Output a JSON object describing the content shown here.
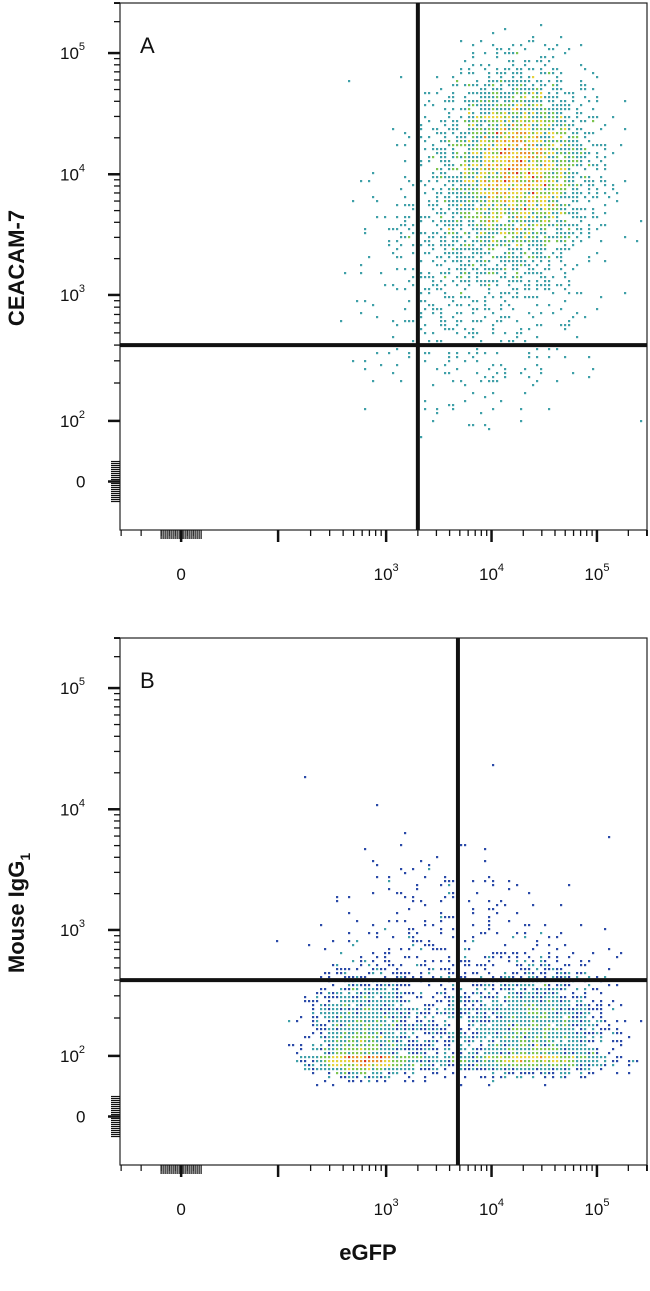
{
  "chart_data": {
    "type": "scatter",
    "x_axis_label": "eGFP",
    "scale": "biexponential (logicle)",
    "x_tick_labels": [
      {
        "base": "0",
        "exp": ""
      },
      {
        "base": "10",
        "exp": "3"
      },
      {
        "base": "10",
        "exp": "4"
      },
      {
        "base": "10",
        "exp": "5"
      }
    ],
    "y_tick_labels": [
      {
        "base": "0",
        "exp": ""
      },
      {
        "base": "10",
        "exp": "2"
      },
      {
        "base": "10",
        "exp": "3"
      },
      {
        "base": "10",
        "exp": "4"
      },
      {
        "base": "10",
        "exp": "5"
      }
    ],
    "density_colors": [
      "#2a4aa8",
      "#3fa0a8",
      "#7cc44e",
      "#e6d23a",
      "#e8902a",
      "#d83020"
    ],
    "panels": [
      {
        "letter": "A",
        "y_axis_label": "CEACAM-7",
        "y_axis_label_sub": "",
        "gate_x": 2000,
        "gate_y": 400,
        "clusters": [
          {
            "x": 18000,
            "y": 12000,
            "x_spread": 0.32,
            "y_spread": 0.36,
            "count": 4200
          },
          {
            "x": 10000,
            "y": 2500,
            "x_spread": 0.45,
            "y_spread": 0.55,
            "count": 900
          },
          {
            "x": 3000,
            "y": 900,
            "x_spread": 0.4,
            "y_spread": 0.5,
            "count": 150
          }
        ]
      },
      {
        "letter": "B",
        "y_axis_label": "Mouse IgG",
        "y_axis_label_sub": "1",
        "gate_x": 4800,
        "gate_y": 400,
        "clusters": [
          {
            "x": 600,
            "y": 100,
            "x_spread": 0.22,
            "y_spread": 0.3,
            "count": 2600
          },
          {
            "x": 28000,
            "y": 130,
            "x_spread": 0.3,
            "y_spread": 0.3,
            "count": 2400
          },
          {
            "x": 5000,
            "y": 120,
            "x_spread": 0.45,
            "y_spread": 0.35,
            "count": 800
          },
          {
            "x": 3000,
            "y": 600,
            "x_spread": 0.5,
            "y_spread": 0.5,
            "count": 300
          }
        ]
      }
    ]
  }
}
